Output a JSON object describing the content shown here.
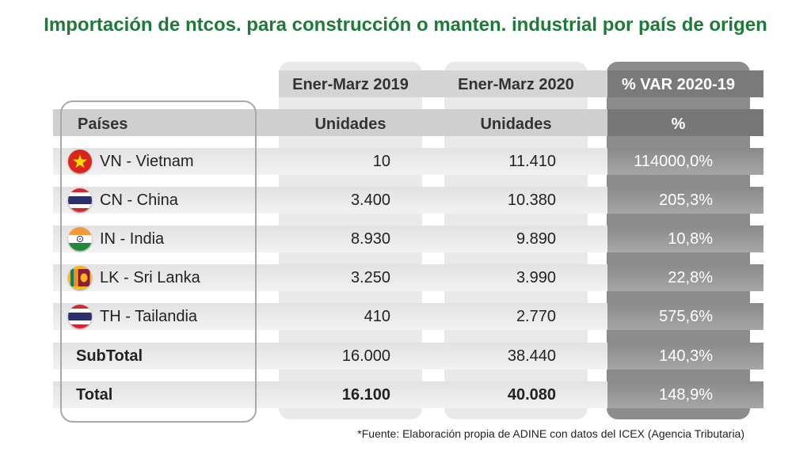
{
  "title": "Importación de ntcos. para construcción o manten. industrial por país de origen",
  "chart_data": {
    "type": "table",
    "column_groups": [
      "Ener-Marz 2019",
      "Ener-Marz 2020",
      "% VAR 2020-19"
    ],
    "columns": [
      "Países",
      "Unidades",
      "Unidades",
      "%"
    ],
    "rows": [
      {
        "country": "VN - Vietnam",
        "v2019": "10",
        "v2020": "11.410",
        "var": "114000,0%",
        "flag": "vietnam-flag-icon"
      },
      {
        "country": "CN - China",
        "v2019": "3.400",
        "v2020": "10.380",
        "var": "205,3%",
        "flag": "thailand-flag-icon"
      },
      {
        "country": "IN - India",
        "v2019": "8.930",
        "v2020": "9.890",
        "var": "10,8%",
        "flag": "india-flag-icon"
      },
      {
        "country": "LK - Sri Lanka",
        "v2019": "3.250",
        "v2020": "3.990",
        "var": "22,8%",
        "flag": "sri-lanka-flag-icon"
      },
      {
        "country": "TH - Tailandia",
        "v2019": "410",
        "v2020": "2.770",
        "var": "575,6%",
        "flag": "thailand-flag-icon"
      }
    ],
    "subtotal": {
      "label": "SubTotal",
      "v2019": "16.000",
      "v2020": "38.440",
      "var": "140,3%"
    },
    "total": {
      "label": "Total",
      "v2019": "16.100",
      "v2020": "40.080",
      "var": "148,9%"
    }
  },
  "source": "*Fuente: Elaboración propia de ADINE con datos del ICEX (Agencia Tributaria)",
  "colors": {
    "title": "#1f7a3a",
    "var_column": "#8c8c8c"
  }
}
